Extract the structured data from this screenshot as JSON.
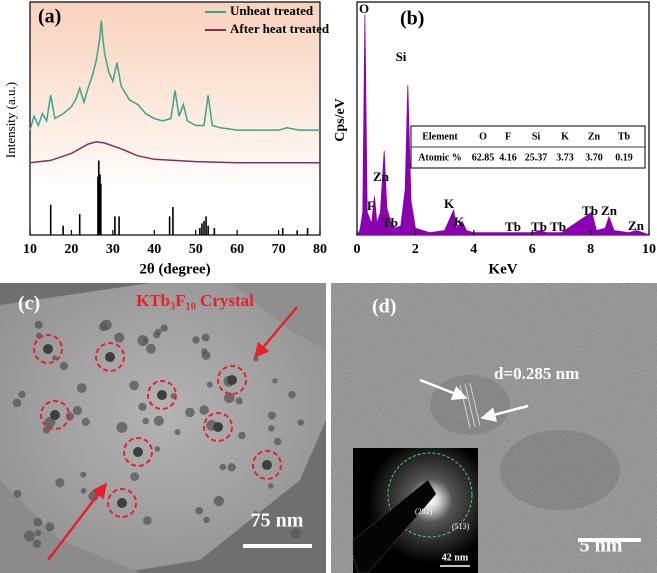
{
  "chart_data": [
    {
      "type": "line",
      "panel_label": "(a)",
      "xlabel": "2θ (degree)",
      "ylabel": "Intensity (a.u.)",
      "xlim": [
        10,
        80
      ],
      "xticks": [
        10,
        20,
        30,
        40,
        50,
        60,
        70,
        80
      ],
      "ylim": [
        0,
        100
      ],
      "series": [
        {
          "name": "Unheat treated",
          "color": "#3ca58c",
          "x": [
            10,
            11,
            12,
            13,
            14,
            15,
            16,
            18,
            20,
            21,
            22,
            23,
            24,
            25,
            26,
            26.8,
            27.2,
            27.6,
            28,
            29,
            30,
            31,
            32,
            34,
            36,
            38,
            40,
            42,
            44,
            45,
            46,
            47,
            48,
            50,
            52,
            53,
            54,
            56,
            60,
            65,
            70,
            72,
            75,
            80
          ],
          "values": [
            45,
            51,
            47,
            52,
            49,
            60,
            50,
            52,
            55,
            58,
            63,
            57,
            63,
            68,
            75,
            84,
            92,
            84,
            78,
            70,
            66,
            74,
            64,
            58,
            56,
            52,
            50,
            49,
            50,
            62,
            51,
            56,
            49,
            47,
            47,
            60,
            47,
            46,
            45,
            45,
            45,
            46,
            45,
            45
          ]
        },
        {
          "name": "After heat treated",
          "color": "#8a2d5c",
          "x": [
            10,
            15,
            20,
            24,
            26,
            28,
            32,
            36,
            40,
            50,
            60,
            70,
            80
          ],
          "values": [
            31,
            32,
            35,
            39,
            40,
            39.5,
            37,
            34,
            32.5,
            31.5,
            31,
            31,
            31
          ]
        }
      ],
      "reference": {
        "color": "#000000",
        "x": [
          15,
          18,
          22,
          26.4,
          26.6,
          26.9,
          27.1,
          30.5,
          31.5,
          43.7,
          44.5,
          51,
          51.5,
          52,
          52.5,
          53,
          54.5,
          71,
          74.5,
          77
        ],
        "values": [
          13,
          4,
          9,
          25,
          32,
          26,
          22,
          8,
          8,
          8,
          12,
          3,
          5,
          6,
          8,
          4,
          3,
          3,
          2,
          3
        ]
      }
    },
    {
      "type": "area",
      "panel_label": "(b)",
      "xlabel": "KeV",
      "ylabel": "Cps/eV",
      "xlim": [
        0,
        10
      ],
      "xticks": [
        0,
        2,
        4,
        6,
        8,
        10
      ],
      "ylim": [
        0,
        100
      ],
      "color": "#8a00b0",
      "x": [
        0,
        0.1,
        0.2,
        0.27,
        0.35,
        0.5,
        0.6,
        0.68,
        0.8,
        0.93,
        1.02,
        1.15,
        1.3,
        1.5,
        1.65,
        1.74,
        1.85,
        2.0,
        2.5,
        3.0,
        3.31,
        3.4,
        3.6,
        3.75,
        4.0,
        5.0,
        6.0,
        6.27,
        6.5,
        7.0,
        8.04,
        8.2,
        8.5,
        8.63,
        8.8,
        9.3,
        9.57,
        9.8,
        10
      ],
      "values": [
        0,
        2,
        10,
        97,
        10,
        5,
        17,
        5,
        10,
        37,
        12,
        6,
        3,
        4,
        20,
        66,
        15,
        3,
        1,
        2,
        11,
        3,
        6,
        2,
        1,
        1,
        1,
        2,
        1,
        1,
        10,
        2,
        3,
        8,
        2,
        1,
        2,
        1,
        0
      ],
      "annotations": [
        "O",
        "Si",
        "Zn",
        "F",
        "Tb",
        "K",
        "K",
        "Tb",
        "Tb",
        "Tb",
        "Tb",
        "Zn",
        "Zn"
      ],
      "table": {
        "header": [
          "Element",
          "O",
          "F",
          "Si",
          "K",
          "Zn",
          "Tb"
        ],
        "rows": [
          [
            "Atomic %",
            "62.85",
            "4.16",
            "25.37",
            "3.73",
            "3.70",
            "0.19"
          ]
        ]
      }
    }
  ],
  "images": [
    {
      "panel_label": "(c)",
      "caption": "KTb₃F₁₀ Crystal",
      "scale_bar": "75 nm"
    },
    {
      "panel_label": "(d)",
      "annotation": "d=0.285 nm",
      "scale_bar": "5 nm",
      "inset": {
        "labels": [
          "(202)",
          "(513)"
        ],
        "scale_bar": "42 nm"
      }
    }
  ]
}
